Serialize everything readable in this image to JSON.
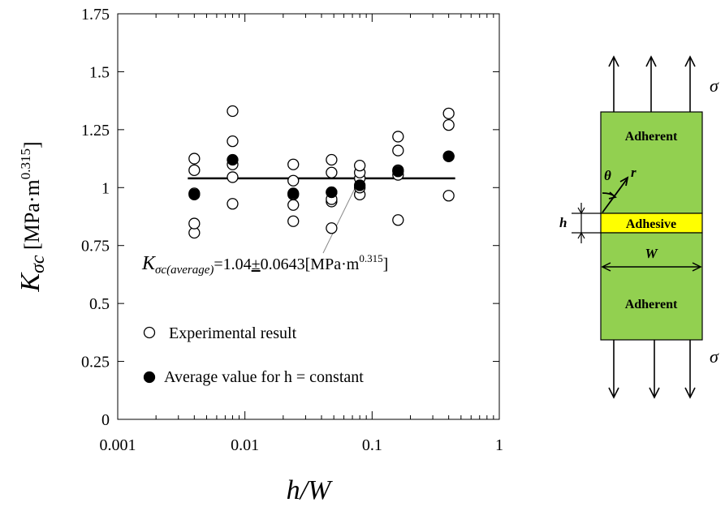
{
  "chart_data": {
    "type": "scatter",
    "title": "",
    "xlabel": "h/W",
    "ylabel": "Kσc [MPa·m^0.315]",
    "ylabel_parts": {
      "symbol": "K",
      "subscript": "σc",
      "unit_open": " [MPa·m",
      "unit_exp": "0.315",
      "unit_close": "]"
    },
    "xscale": "log",
    "xlim": [
      0.001,
      1
    ],
    "ylim": [
      0,
      1.75
    ],
    "xticks": [
      0.001,
      0.01,
      0.1,
      1
    ],
    "xtick_labels": [
      "0.001",
      "0.01",
      "0.1",
      "1"
    ],
    "yticks": [
      0,
      0.25,
      0.5,
      0.75,
      1,
      1.25,
      1.5,
      1.75
    ],
    "ytick_labels": [
      "0",
      "0.25",
      "0.5",
      "0.75",
      "1",
      "1.25",
      "1.5",
      "1.75"
    ],
    "grid": false,
    "legend_position": "bottom-left",
    "series": [
      {
        "name": "Experimental result",
        "marker": "open-circle",
        "points": [
          [
            0.004,
            0.805
          ],
          [
            0.004,
            0.845
          ],
          [
            0.004,
            0.975
          ],
          [
            0.004,
            1.075
          ],
          [
            0.004,
            1.125
          ],
          [
            0.008,
            0.93
          ],
          [
            0.008,
            1.045
          ],
          [
            0.008,
            1.1
          ],
          [
            0.008,
            1.2
          ],
          [
            0.008,
            1.33
          ],
          [
            0.024,
            0.855
          ],
          [
            0.024,
            0.925
          ],
          [
            0.024,
            0.97
          ],
          [
            0.024,
            1.03
          ],
          [
            0.024,
            1.1
          ],
          [
            0.048,
            0.825
          ],
          [
            0.048,
            0.94
          ],
          [
            0.048,
            0.95
          ],
          [
            0.048,
            0.98
          ],
          [
            0.048,
            1.065
          ],
          [
            0.048,
            1.12
          ],
          [
            0.08,
            0.97
          ],
          [
            0.08,
            1.0
          ],
          [
            0.08,
            1.04
          ],
          [
            0.08,
            1.065
          ],
          [
            0.08,
            1.095
          ],
          [
            0.16,
            0.86
          ],
          [
            0.16,
            1.055
          ],
          [
            0.16,
            1.075
          ],
          [
            0.16,
            1.16
          ],
          [
            0.16,
            1.22
          ],
          [
            0.4,
            0.965
          ],
          [
            0.4,
            1.135
          ],
          [
            0.4,
            1.27
          ],
          [
            0.4,
            1.32
          ]
        ]
      },
      {
        "name": "Average value for h = constant",
        "marker": "filled-circle",
        "points": [
          [
            0.004,
            0.97
          ],
          [
            0.008,
            1.12
          ],
          [
            0.024,
            0.975
          ],
          [
            0.048,
            0.98
          ],
          [
            0.08,
            1.01
          ],
          [
            0.16,
            1.07
          ],
          [
            0.4,
            1.135
          ]
        ]
      }
    ],
    "average_line": {
      "value": 1.04,
      "x_range": [
        0.004,
        0.4
      ]
    },
    "annotation": {
      "symbol": "K",
      "subscript": "σc(average)",
      "text_before": "=1.04",
      "pm": "±",
      "text_after": "0.0643[MPa·m",
      "exp": "0.315",
      "close": "]",
      "points_to": [
        0.08,
        1.04
      ]
    },
    "legend": [
      {
        "marker": "open-circle",
        "label": "Experimental result"
      },
      {
        "marker": "filled-circle",
        "label": "Average value for h = constant"
      }
    ]
  },
  "diagram": {
    "top_label": "Adherent",
    "middle_label": "Adhesive",
    "bottom_label": "Adherent",
    "sigma_top": "σ",
    "sigma_bottom": "σ",
    "h_label": "h",
    "w_label": "W",
    "theta_label": "θ",
    "r_label": "r",
    "colors": {
      "adherent": "#92d050",
      "adhesive": "#ffff00",
      "outline": "#000000"
    }
  }
}
